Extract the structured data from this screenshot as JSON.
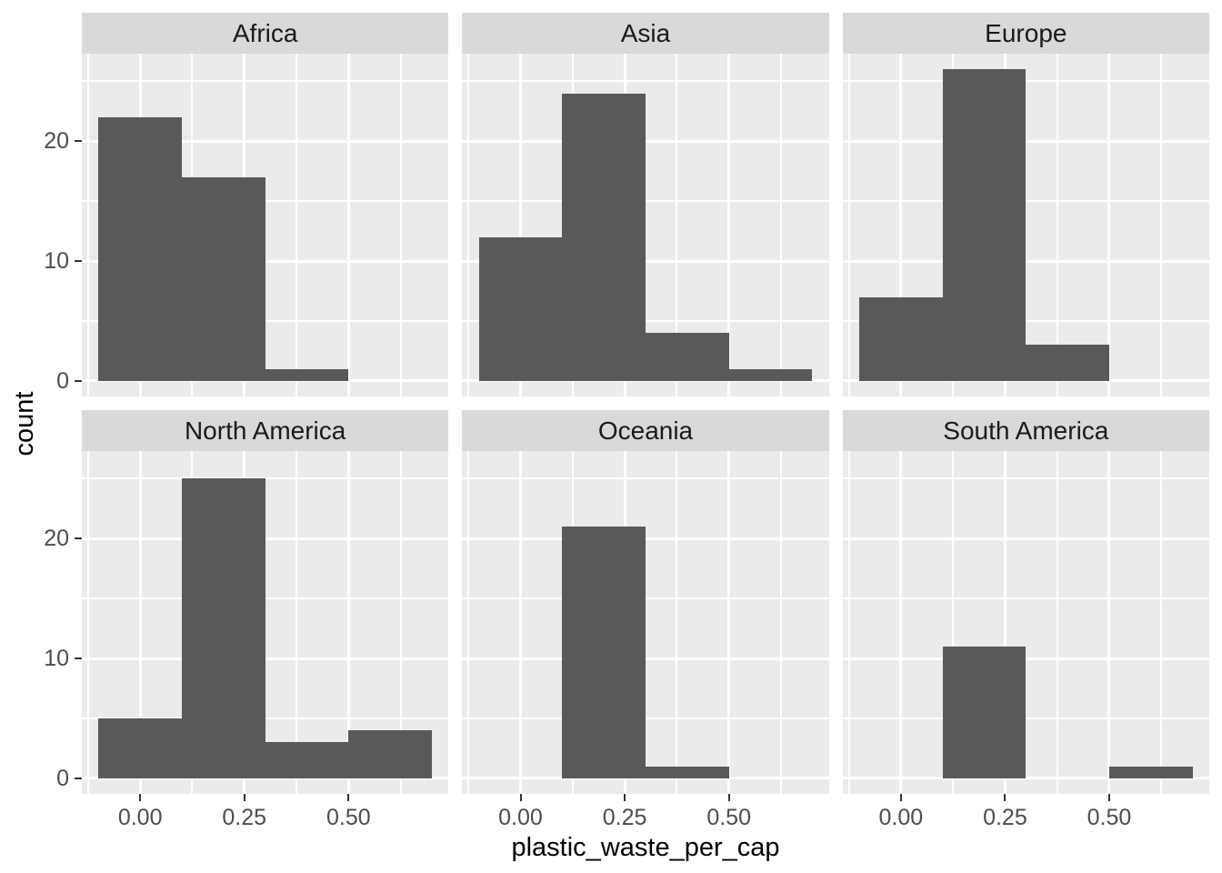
{
  "chart_data": {
    "type": "histogram",
    "faceted": true,
    "xlabel": "plastic_waste_per_cap",
    "ylabel": "count",
    "bin_edges": [
      -0.1,
      0.1,
      0.3,
      0.5,
      0.7
    ],
    "facets": [
      {
        "label": "Africa",
        "counts": [
          22,
          17,
          1,
          0
        ]
      },
      {
        "label": "Asia",
        "counts": [
          12,
          24,
          4,
          1
        ]
      },
      {
        "label": "Europe",
        "counts": [
          7,
          26,
          3,
          0
        ]
      },
      {
        "label": "North America",
        "counts": [
          5,
          25,
          3,
          4
        ]
      },
      {
        "label": "Oceania",
        "counts": [
          0,
          21,
          1,
          0
        ]
      },
      {
        "label": "South America",
        "counts": [
          0,
          11,
          0,
          1
        ]
      }
    ],
    "x_axis": {
      "range": [
        -0.14,
        0.74
      ],
      "tick_values": [
        0,
        0.25,
        0.5
      ],
      "tick_labels": [
        "0.00",
        "0.25",
        "0.50"
      ],
      "minor_ticks": [
        -0.125,
        0.125,
        0.375,
        0.625
      ]
    },
    "y_axis": {
      "range": [
        -1.3,
        27.3
      ],
      "tick_values": [
        0,
        10,
        20
      ],
      "tick_labels": [
        "0",
        "10",
        "20"
      ],
      "minor_ticks": [
        5,
        15,
        25
      ]
    },
    "grid": true,
    "legend": "none",
    "colors": {
      "bar_fill": "#595959",
      "panel_background": "#EBEBEB",
      "strip_background": "#D9D9D9",
      "gridline": "#FFFFFF",
      "axis_text": "#4D4D4D",
      "axis_title": "#000000",
      "strip_text": "#1A1A1A",
      "tick_mark": "#333333"
    }
  }
}
